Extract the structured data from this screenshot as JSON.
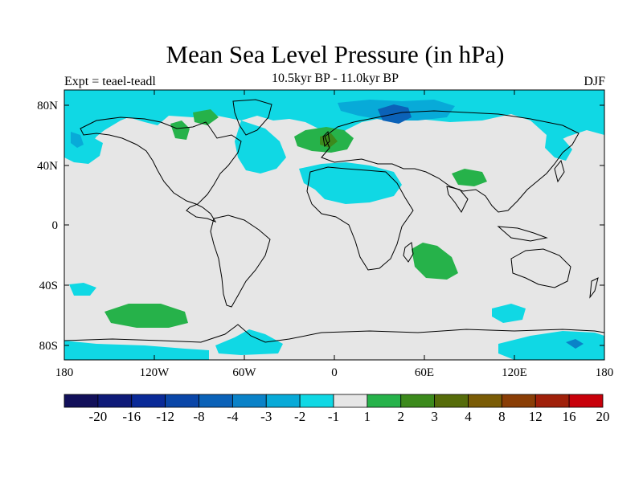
{
  "title": "Mean Sea Level Pressure (in hPa)",
  "subtitle": "10.5kyr BP - 11.0kyr BP",
  "left_label": "Expt = teael-teadl",
  "right_label": "DJF",
  "lat_ticks": [
    "80N",
    "40N",
    "0",
    "40S",
    "80S"
  ],
  "lon_ticks": [
    "180",
    "120W",
    "60W",
    "0",
    "60E",
    "120E",
    "180"
  ],
  "colorbar": {
    "labels": [
      "-20",
      "-16",
      "-12",
      "-8",
      "-4",
      "-3",
      "-2",
      "-1",
      "1",
      "2",
      "3",
      "4",
      "8",
      "12",
      "16",
      "20"
    ],
    "colors": [
      "#12105a",
      "#0e1a78",
      "#0a2a98",
      "#0a46a8",
      "#0b62b8",
      "#0a82c8",
      "#08aad8",
      "#10d8e4",
      "#e6e6e6",
      "#26b24a",
      "#3c8a1c",
      "#566c0a",
      "#7a5c06",
      "#8a3e06",
      "#a0200a",
      "#c8000a"
    ]
  },
  "colors": {
    "land_ocean_neutral": "#e6e6e6",
    "coastline": "#000000"
  }
}
